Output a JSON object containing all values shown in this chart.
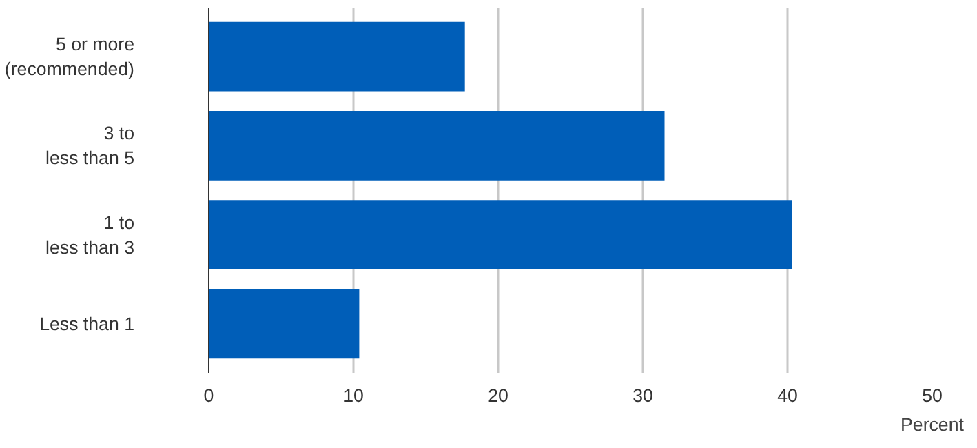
{
  "chart_data": {
    "type": "bar",
    "orientation": "horizontal",
    "categories": [
      "5 or more\n(recommended)",
      "3 to\nless than 5",
      "1 to\nless than 3",
      "Less than 1"
    ],
    "values": [
      17.7,
      31.5,
      40.3,
      10.4
    ],
    "color": "#005eb8",
    "xlabel": "Percent",
    "xlim": [
      0,
      50
    ],
    "xticks": [
      0,
      10,
      20,
      30,
      40,
      50
    ],
    "grid": "x"
  }
}
